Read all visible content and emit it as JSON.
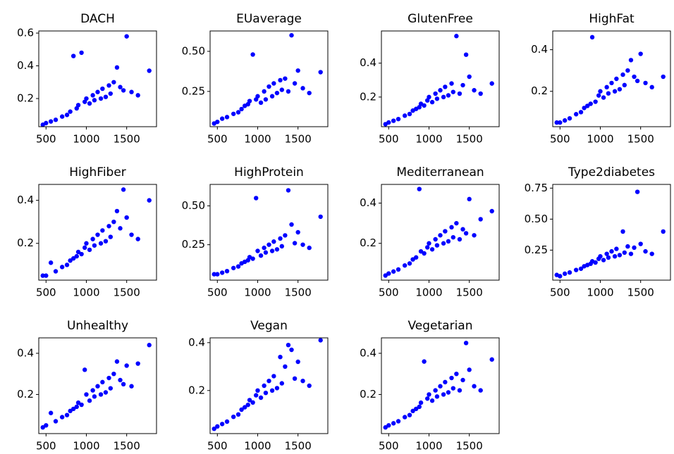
{
  "chart_data": [
    {
      "type": "scatter",
      "title": "DACH",
      "color": "#0000ff",
      "x": [
        460,
        500,
        560,
        620,
        700,
        760,
        800,
        840,
        880,
        900,
        940,
        980,
        1000,
        1040,
        1080,
        1100,
        1140,
        1180,
        1200,
        1240,
        1280,
        1300,
        1340,
        1380,
        1420,
        1460,
        1500,
        1560,
        1640,
        1780
      ],
      "values": [
        0.04,
        0.05,
        0.06,
        0.07,
        0.09,
        0.1,
        0.12,
        0.46,
        0.14,
        0.16,
        0.48,
        0.18,
        0.2,
        0.17,
        0.22,
        0.19,
        0.24,
        0.2,
        0.26,
        0.21,
        0.28,
        0.23,
        0.3,
        0.39,
        0.27,
        0.25,
        0.58,
        0.24,
        0.22,
        0.37
      ],
      "xlim": [
        410,
        1870
      ],
      "xticks": [
        500,
        1000,
        1500
      ],
      "ylim": [
        0.028,
        0.613
      ],
      "yticks": [
        0.2,
        0.4,
        0.6
      ]
    },
    {
      "type": "scatter",
      "title": "EUaverage",
      "color": "#0000ff",
      "x": [
        460,
        500,
        560,
        620,
        700,
        760,
        800,
        840,
        880,
        900,
        940,
        980,
        1000,
        1040,
        1080,
        1100,
        1140,
        1180,
        1200,
        1240,
        1280,
        1300,
        1340,
        1380,
        1420,
        1460,
        1500,
        1560,
        1640,
        1780
      ],
      "values": [
        0.05,
        0.06,
        0.08,
        0.09,
        0.11,
        0.12,
        0.14,
        0.16,
        0.17,
        0.19,
        0.48,
        0.2,
        0.22,
        0.18,
        0.25,
        0.2,
        0.28,
        0.22,
        0.3,
        0.24,
        0.32,
        0.26,
        0.33,
        0.25,
        0.6,
        0.3,
        0.38,
        0.27,
        0.24,
        0.37
      ],
      "xlim": [
        410,
        1870
      ],
      "xticks": [
        500,
        1000,
        1500
      ],
      "ylim": [
        0.03,
        0.627
      ],
      "yticks": [
        0.25,
        {
          "value": 0.5,
          "label": "0.50"
        }
      ]
    },
    {
      "type": "scatter",
      "title": "GlutenFree",
      "color": "#0000ff",
      "x": [
        460,
        500,
        560,
        620,
        700,
        760,
        800,
        840,
        880,
        900,
        940,
        980,
        1000,
        1040,
        1080,
        1100,
        1140,
        1180,
        1200,
        1240,
        1280,
        1300,
        1340,
        1380,
        1420,
        1460,
        1500,
        1560,
        1640,
        1780
      ],
      "values": [
        0.04,
        0.05,
        0.06,
        0.07,
        0.09,
        0.1,
        0.12,
        0.13,
        0.14,
        0.16,
        0.15,
        0.18,
        0.2,
        0.17,
        0.22,
        0.19,
        0.24,
        0.2,
        0.26,
        0.21,
        0.28,
        0.23,
        0.56,
        0.22,
        0.27,
        0.45,
        0.32,
        0.24,
        0.22,
        0.28
      ],
      "xlim": [
        410,
        1870
      ],
      "xticks": [
        500,
        1000,
        1500
      ],
      "ylim": [
        0.025,
        0.59
      ],
      "yticks": [
        0.2,
        0.4
      ]
    },
    {
      "type": "scatter",
      "title": "HighFat",
      "color": "#0000ff",
      "x": [
        460,
        500,
        560,
        620,
        700,
        760,
        800,
        840,
        880,
        900,
        940,
        980,
        1000,
        1040,
        1080,
        1100,
        1140,
        1180,
        1200,
        1240,
        1280,
        1300,
        1340,
        1380,
        1420,
        1460,
        1500,
        1560,
        1640,
        1780
      ],
      "values": [
        0.05,
        0.05,
        0.06,
        0.07,
        0.09,
        0.1,
        0.12,
        0.13,
        0.14,
        0.46,
        0.15,
        0.18,
        0.2,
        0.17,
        0.22,
        0.19,
        0.24,
        0.2,
        0.26,
        0.21,
        0.28,
        0.23,
        0.3,
        0.35,
        0.27,
        0.25,
        0.38,
        0.24,
        0.22,
        0.27
      ],
      "xlim": [
        410,
        1870
      ],
      "xticks": [
        500,
        1000,
        1500
      ],
      "ylim": [
        0.03,
        0.49
      ],
      "yticks": [
        0.2,
        0.4
      ]
    },
    {
      "type": "scatter",
      "title": "HighFiber",
      "color": "#0000ff",
      "x": [
        460,
        500,
        560,
        620,
        700,
        760,
        800,
        840,
        880,
        900,
        940,
        980,
        1000,
        1040,
        1080,
        1100,
        1140,
        1180,
        1200,
        1240,
        1280,
        1300,
        1340,
        1380,
        1420,
        1460,
        1500,
        1560,
        1640,
        1780
      ],
      "values": [
        0.05,
        0.05,
        0.11,
        0.07,
        0.09,
        0.1,
        0.12,
        0.13,
        0.14,
        0.16,
        0.15,
        0.18,
        0.2,
        0.17,
        0.22,
        0.19,
        0.24,
        0.2,
        0.26,
        0.21,
        0.28,
        0.23,
        0.3,
        0.35,
        0.27,
        0.45,
        0.32,
        0.24,
        0.22,
        0.4
      ],
      "xlim": [
        410,
        1870
      ],
      "xticks": [
        500,
        1000,
        1500
      ],
      "ylim": [
        0.029,
        0.474
      ],
      "yticks": [
        0.2,
        0.4
      ]
    },
    {
      "type": "scatter",
      "title": "HighProtein",
      "color": "#0000ff",
      "x": [
        460,
        500,
        560,
        620,
        700,
        760,
        800,
        840,
        880,
        900,
        940,
        980,
        1000,
        1040,
        1080,
        1100,
        1140,
        1180,
        1200,
        1240,
        1280,
        1300,
        1340,
        1380,
        1420,
        1460,
        1500,
        1560,
        1640,
        1780
      ],
      "values": [
        0.06,
        0.06,
        0.07,
        0.08,
        0.1,
        0.11,
        0.13,
        0.14,
        0.15,
        0.17,
        0.16,
        0.55,
        0.21,
        0.18,
        0.23,
        0.2,
        0.25,
        0.21,
        0.27,
        0.22,
        0.29,
        0.24,
        0.31,
        0.6,
        0.38,
        0.26,
        0.33,
        0.25,
        0.23,
        0.43
      ],
      "xlim": [
        410,
        1870
      ],
      "xticks": [
        500,
        1000,
        1500
      ],
      "ylim": [
        0.022,
        0.638
      ],
      "yticks": [
        0.25,
        {
          "value": 0.5,
          "label": "0.50"
        }
      ]
    },
    {
      "type": "scatter",
      "title": "Mediterranean",
      "color": "#0000ff",
      "x": [
        460,
        500,
        560,
        620,
        700,
        760,
        800,
        840,
        880,
        900,
        940,
        980,
        1000,
        1040,
        1080,
        1100,
        1140,
        1180,
        1200,
        1240,
        1280,
        1300,
        1340,
        1380,
        1420,
        1460,
        1500,
        1560,
        1640,
        1780
      ],
      "values": [
        0.04,
        0.05,
        0.06,
        0.07,
        0.09,
        0.1,
        0.12,
        0.13,
        0.47,
        0.16,
        0.15,
        0.18,
        0.2,
        0.17,
        0.22,
        0.19,
        0.24,
        0.2,
        0.26,
        0.21,
        0.28,
        0.23,
        0.3,
        0.22,
        0.27,
        0.25,
        0.42,
        0.24,
        0.32,
        0.36
      ],
      "xlim": [
        410,
        1870
      ],
      "xticks": [
        500,
        1000,
        1500
      ],
      "ylim": [
        0.017,
        0.493
      ],
      "yticks": [
        0.2,
        0.4
      ]
    },
    {
      "type": "scatter",
      "title": "Type2diabetes",
      "color": "#0000ff",
      "x": [
        460,
        500,
        560,
        620,
        700,
        760,
        800,
        840,
        880,
        900,
        940,
        980,
        1000,
        1040,
        1080,
        1100,
        1140,
        1180,
        1200,
        1240,
        1280,
        1300,
        1340,
        1380,
        1420,
        1460,
        1500,
        1560,
        1640,
        1780
      ],
      "values": [
        0.05,
        0.04,
        0.06,
        0.07,
        0.09,
        0.1,
        0.12,
        0.13,
        0.14,
        0.16,
        0.15,
        0.18,
        0.2,
        0.17,
        0.22,
        0.19,
        0.24,
        0.2,
        0.26,
        0.21,
        0.4,
        0.23,
        0.28,
        0.22,
        0.27,
        0.72,
        0.3,
        0.24,
        0.22,
        0.4
      ],
      "xlim": [
        410,
        1870
      ],
      "xticks": [
        500,
        1000,
        1500
      ],
      "ylim": [
        0.008,
        0.78
      ],
      "yticks": [
        0.25,
        {
          "value": 0.5,
          "label": "0.50"
        },
        0.75
      ]
    },
    {
      "type": "scatter",
      "title": "Unhealthy",
      "color": "#0000ff",
      "x": [
        460,
        500,
        560,
        620,
        700,
        760,
        800,
        840,
        880,
        900,
        940,
        980,
        1000,
        1040,
        1080,
        1100,
        1140,
        1180,
        1200,
        1240,
        1280,
        1300,
        1340,
        1380,
        1420,
        1460,
        1500,
        1560,
        1640,
        1780
      ],
      "values": [
        0.04,
        0.05,
        0.11,
        0.07,
        0.09,
        0.1,
        0.12,
        0.13,
        0.14,
        0.16,
        0.15,
        0.32,
        0.2,
        0.17,
        0.22,
        0.19,
        0.24,
        0.2,
        0.26,
        0.21,
        0.28,
        0.23,
        0.3,
        0.36,
        0.27,
        0.25,
        0.34,
        0.24,
        0.35,
        0.44
      ],
      "xlim": [
        410,
        1870
      ],
      "xticks": [
        500,
        1000,
        1500
      ],
      "ylim": [
        0.01,
        0.475
      ],
      "yticks": [
        0.2,
        0.4
      ]
    },
    {
      "type": "scatter",
      "title": "Vegan",
      "color": "#0000ff",
      "x": [
        460,
        500,
        560,
        620,
        700,
        760,
        800,
        840,
        880,
        900,
        940,
        980,
        1000,
        1040,
        1080,
        1100,
        1140,
        1180,
        1200,
        1240,
        1280,
        1300,
        1340,
        1380,
        1420,
        1460,
        1500,
        1560,
        1640,
        1780
      ],
      "values": [
        0.04,
        0.05,
        0.06,
        0.07,
        0.09,
        0.1,
        0.12,
        0.13,
        0.14,
        0.16,
        0.15,
        0.18,
        0.2,
        0.17,
        0.22,
        0.19,
        0.24,
        0.2,
        0.26,
        0.21,
        0.34,
        0.23,
        0.3,
        0.39,
        0.37,
        0.25,
        0.32,
        0.24,
        0.22,
        0.41
      ],
      "xlim": [
        410,
        1870
      ],
      "xticks": [
        500,
        1000,
        1500
      ],
      "ylim": [
        0.02,
        0.42
      ],
      "yticks": [
        0.2,
        0.4
      ]
    },
    {
      "type": "scatter",
      "title": "Vegetarian",
      "color": "#0000ff",
      "x": [
        460,
        500,
        560,
        620,
        700,
        760,
        800,
        840,
        880,
        900,
        940,
        980,
        1000,
        1040,
        1080,
        1100,
        1140,
        1180,
        1200,
        1240,
        1280,
        1300,
        1340,
        1380,
        1420,
        1460,
        1500,
        1560,
        1640,
        1780
      ],
      "values": [
        0.04,
        0.05,
        0.06,
        0.07,
        0.09,
        0.1,
        0.12,
        0.13,
        0.14,
        0.16,
        0.36,
        0.18,
        0.2,
        0.17,
        0.22,
        0.19,
        0.24,
        0.2,
        0.26,
        0.21,
        0.28,
        0.23,
        0.3,
        0.22,
        0.27,
        0.45,
        0.32,
        0.24,
        0.22,
        0.37
      ],
      "xlim": [
        410,
        1870
      ],
      "xticks": [
        500,
        1000,
        1500
      ],
      "ylim": [
        0.01,
        0.475
      ],
      "yticks": [
        0.2,
        0.4
      ]
    }
  ]
}
